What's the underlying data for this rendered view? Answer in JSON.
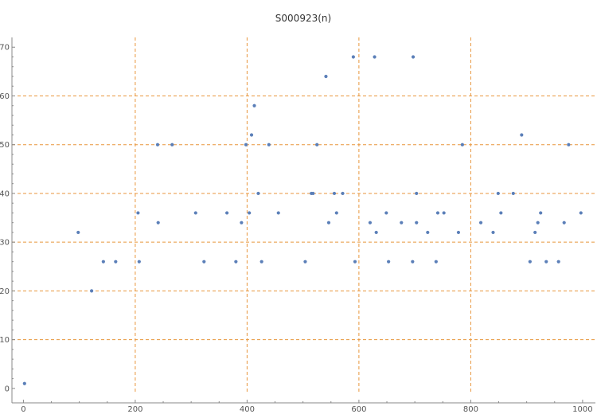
{
  "chart_data": {
    "type": "scatter",
    "title": "S000923(n)",
    "xlabel": "",
    "ylabel": "",
    "xlim": [
      0,
      1000
    ],
    "ylim": [
      0,
      70
    ],
    "x_ticks": [
      0,
      200,
      400,
      600,
      800,
      1000
    ],
    "y_ticks": [
      0,
      10,
      20,
      30,
      40,
      50,
      60,
      70
    ],
    "grid": {
      "vertical": [
        200,
        400,
        600,
        800
      ],
      "horizontal": [
        10,
        20,
        30,
        40,
        50,
        60
      ]
    },
    "colors": {
      "points": "#5b7fb8",
      "grid": "#e8963c",
      "axis": "#888888"
    },
    "series": [
      {
        "points": [
          [
            2,
            1
          ],
          [
            98,
            32
          ],
          [
            122,
            20
          ],
          [
            143,
            26
          ],
          [
            165,
            26
          ],
          [
            205,
            36
          ],
          [
            207,
            26
          ],
          [
            240,
            50
          ],
          [
            241,
            34
          ],
          [
            266,
            50
          ],
          [
            308,
            36
          ],
          [
            323,
            26
          ],
          [
            364,
            36
          ],
          [
            380,
            26
          ],
          [
            390,
            34
          ],
          [
            398,
            50
          ],
          [
            404,
            36
          ],
          [
            408,
            52
          ],
          [
            413,
            58
          ],
          [
            420,
            40
          ],
          [
            426,
            26
          ],
          [
            439,
            50
          ],
          [
            456,
            36
          ],
          [
            504,
            26
          ],
          [
            515,
            40
          ],
          [
            518,
            40
          ],
          [
            525,
            50
          ],
          [
            541,
            64
          ],
          [
            546,
            34
          ],
          [
            556,
            40
          ],
          [
            560,
            36
          ],
          [
            571,
            40
          ],
          [
            590,
            68
          ],
          [
            593,
            26
          ],
          [
            620,
            34
          ],
          [
            628,
            68
          ],
          [
            631,
            32
          ],
          [
            649,
            36
          ],
          [
            653,
            26
          ],
          [
            676,
            34
          ],
          [
            696,
            26
          ],
          [
            697,
            68
          ],
          [
            703,
            40
          ],
          [
            703,
            34
          ],
          [
            723,
            32
          ],
          [
            738,
            26
          ],
          [
            741,
            36
          ],
          [
            752,
            36
          ],
          [
            778,
            32
          ],
          [
            785,
            50
          ],
          [
            818,
            34
          ],
          [
            840,
            32
          ],
          [
            849,
            40
          ],
          [
            854,
            36
          ],
          [
            876,
            40
          ],
          [
            891,
            52
          ],
          [
            906,
            26
          ],
          [
            915,
            32
          ],
          [
            920,
            34
          ],
          [
            925,
            36
          ],
          [
            935,
            26
          ],
          [
            957,
            26
          ],
          [
            967,
            34
          ],
          [
            975,
            50
          ],
          [
            997,
            36
          ]
        ]
      }
    ]
  }
}
